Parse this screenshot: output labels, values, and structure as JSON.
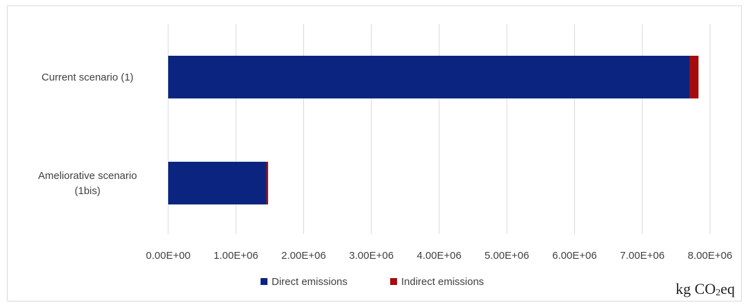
{
  "chart_data": {
    "type": "bar",
    "orientation": "horizontal",
    "stacked": true,
    "categories": [
      [
        "Current scenario (1)"
      ],
      [
        "Ameliorative scenario",
        "(1bis)"
      ]
    ],
    "series": [
      {
        "name": "Direct emissions",
        "values": [
          7700000,
          1450000
        ],
        "color": "#0a2480"
      },
      {
        "name": "Indirect emissions",
        "values": [
          130000,
          25000
        ],
        "color": "#a50d0d"
      }
    ],
    "xlim": [
      0,
      8000000
    ],
    "xticks": [
      "0.00E+00",
      "1.00E+06",
      "2.00E+06",
      "3.00E+06",
      "4.00E+06",
      "5.00E+06",
      "6.00E+06",
      "7.00E+06",
      "8.00E+06"
    ],
    "grid": true,
    "legend_position": "bottom",
    "unit_label": {
      "prefix": "kg CO",
      "subscript": "2",
      "suffix": "eq"
    }
  }
}
